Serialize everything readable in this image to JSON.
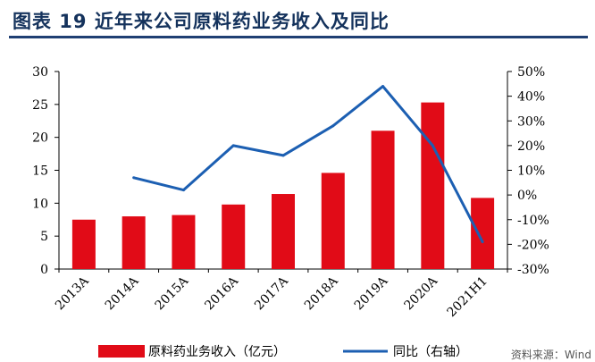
{
  "header": {
    "title": "图表 19   近年来公司原料药业务收入及同比"
  },
  "footer": {
    "source": "资料来源：Wind"
  },
  "chart_data": {
    "type": "bar",
    "categories": [
      "2013A",
      "2014A",
      "2015A",
      "2016A",
      "2017A",
      "2018A",
      "2019A",
      "2020A",
      "2021H1"
    ],
    "series": [
      {
        "name": "原料药业务收入（亿元）",
        "type": "bar",
        "axis": "left",
        "color": "#e10b17",
        "values": [
          7.5,
          8.0,
          8.2,
          9.8,
          11.4,
          14.6,
          21.0,
          25.3,
          10.8
        ]
      },
      {
        "name": "同比（右轴）",
        "type": "line",
        "axis": "right",
        "color": "#1c5fb2",
        "values": [
          null,
          0.07,
          0.02,
          0.2,
          0.16,
          0.28,
          0.44,
          0.2,
          -0.19
        ]
      }
    ],
    "y_left": {
      "min": 0,
      "max": 30,
      "ticks": [
        "0",
        "5",
        "10",
        "15",
        "20",
        "25",
        "30"
      ]
    },
    "y_right": {
      "min": -0.3,
      "max": 0.5,
      "ticks": [
        "-30%",
        "-20%",
        "-10%",
        "0%",
        "10%",
        "20%",
        "30%",
        "40%",
        "50%"
      ]
    },
    "legend": {
      "position": "bottom"
    },
    "grid": false
  }
}
